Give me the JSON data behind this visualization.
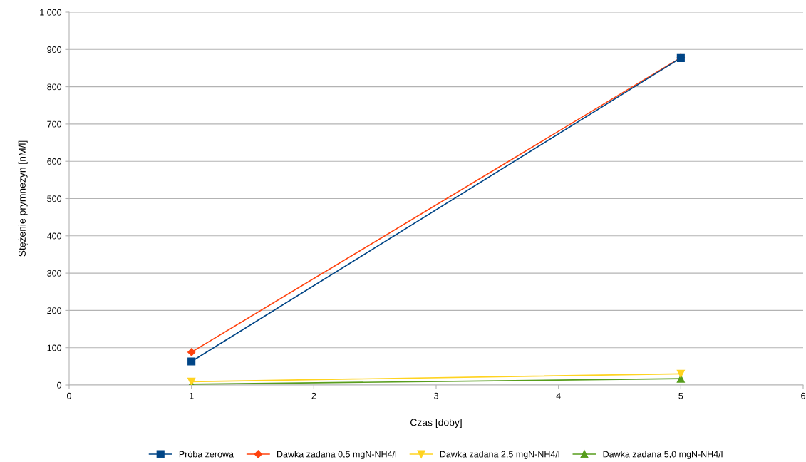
{
  "chart_data": {
    "type": "line",
    "xlabel": "Czas [doby]",
    "ylabel": "Stężenie prymnezyn [nM/l]",
    "x": [
      1,
      5
    ],
    "series": [
      {
        "name": "Próba zerowa",
        "color": "#004586",
        "values": [
          63,
          877
        ],
        "marker": "square"
      },
      {
        "name": "Dawka zadana 0,5 mgN-NH4/l",
        "color": "#ff420e",
        "values": [
          88,
          878
        ],
        "marker": "diamond"
      },
      {
        "name": "Dawka zadana 2,5 mgN-NH4/l",
        "color": "#ffd320",
        "values": [
          9,
          30
        ],
        "marker": "triangle_down"
      },
      {
        "name": "Dawka zadana 5,0 mgN-NH4/l",
        "color": "#579d1c",
        "values": [
          2,
          17
        ],
        "marker": "triangle"
      }
    ],
    "xlim": [
      0,
      6
    ],
    "xticks": [
      0,
      1,
      2,
      3,
      4,
      5,
      6
    ],
    "ylim": [
      0,
      1000
    ],
    "yticks": [
      0,
      100,
      200,
      300,
      400,
      500,
      600,
      700,
      800,
      {
        "value": 900,
        "label": "900"
      },
      {
        "value": 1000,
        "label": "1 000"
      }
    ],
    "grid": "y",
    "legend": "bottom",
    "line_style": "solid"
  }
}
